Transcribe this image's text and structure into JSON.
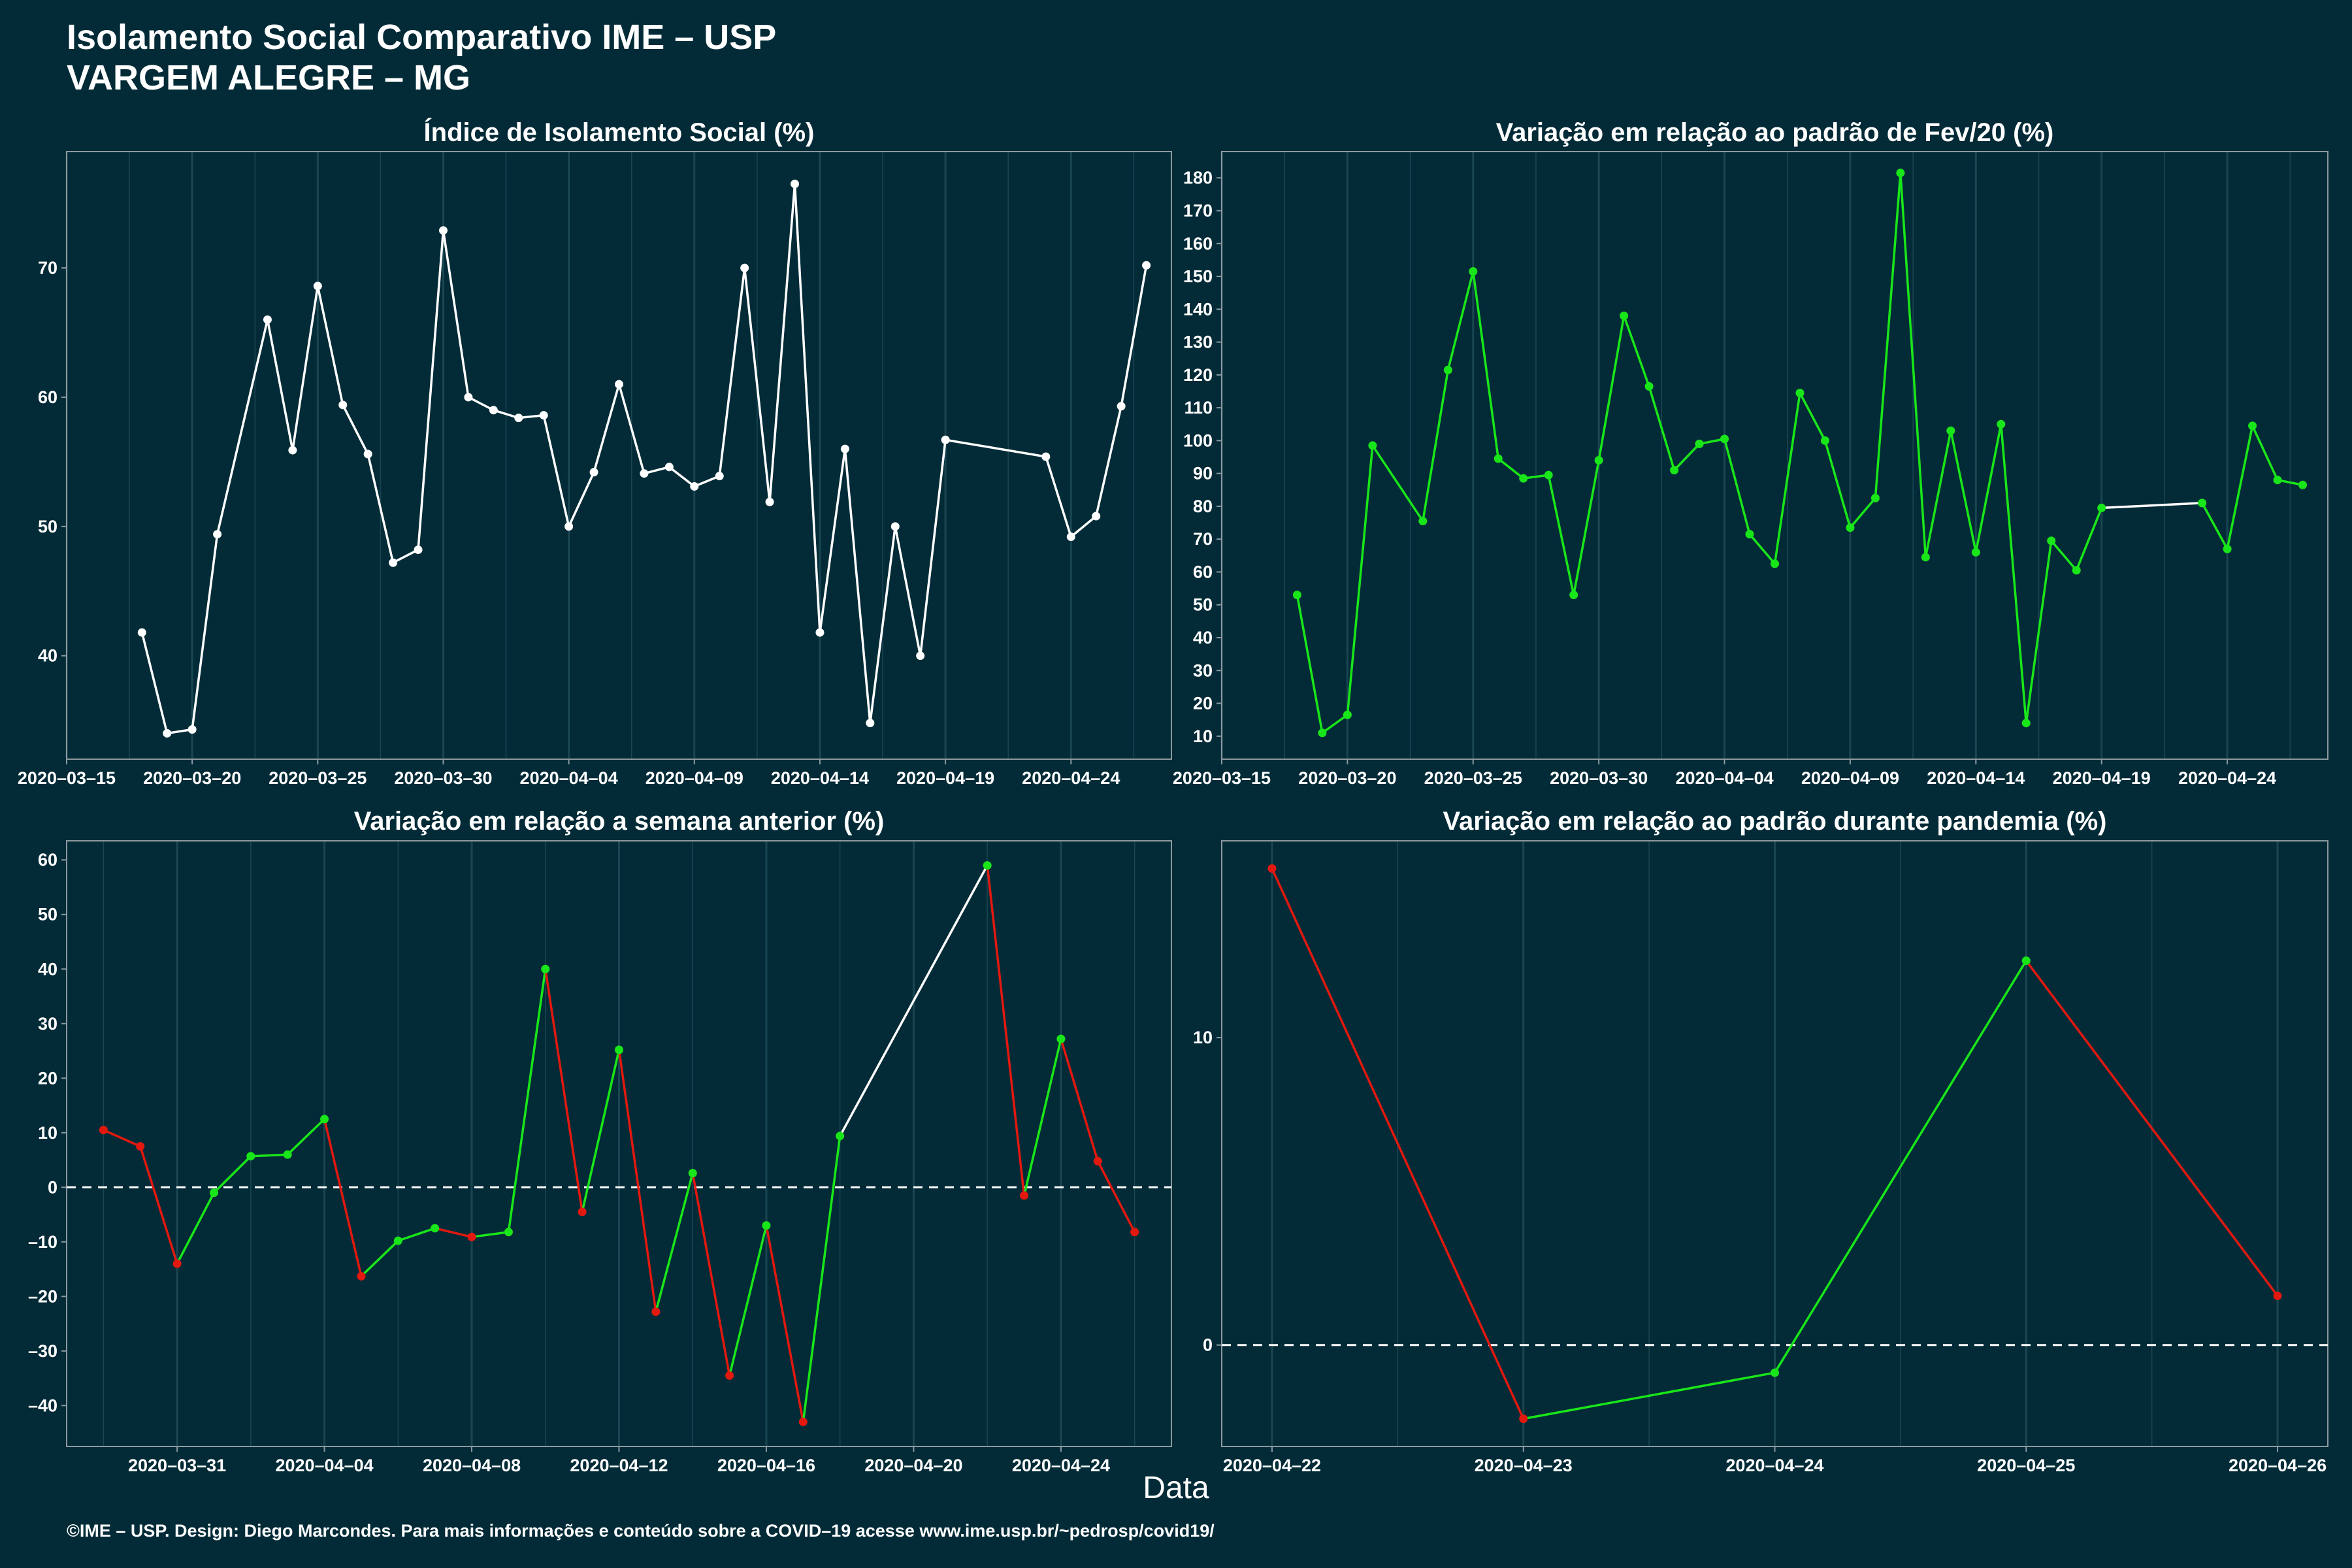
{
  "header": {
    "title_line1": "Isolamento Social Comparativo IME – USP",
    "title_line2": "VARGEM ALEGRE – MG"
  },
  "x_axis_label": "Data",
  "footer": "©IME – USP. Design: Diego Marcondes. Para mais informações e conteúdo sobre a COVID–19 acesse www.ime.usp.br/~pedrosp/covid19/",
  "colors": {
    "background": "#022b37",
    "panel_border": "#8c9aa0",
    "grid": "#1a4652",
    "white": "#ffffff",
    "green": "#19e619",
    "red": "#e3180f",
    "positive": "#19e619",
    "negative": "#e3180f"
  },
  "chart_data": [
    {
      "id": "isolation-index",
      "type": "line",
      "title": "Índice de Isolamento Social (%)",
      "xlabel": "Data",
      "ylabel": "",
      "color": "#ffffff",
      "x": [
        "2020-03-18",
        "2020-03-19",
        "2020-03-20",
        "2020-03-21",
        "2020-03-23",
        "2020-03-24",
        "2020-03-25",
        "2020-03-26",
        "2020-03-27",
        "2020-03-28",
        "2020-03-29",
        "2020-03-30",
        "2020-03-31",
        "2020-04-01",
        "2020-04-02",
        "2020-04-03",
        "2020-04-04",
        "2020-04-05",
        "2020-04-06",
        "2020-04-07",
        "2020-04-08",
        "2020-04-09",
        "2020-04-10",
        "2020-04-11",
        "2020-04-12",
        "2020-04-13",
        "2020-04-14",
        "2020-04-15",
        "2020-04-16",
        "2020-04-17",
        "2020-04-18",
        "2020-04-19",
        "2020-04-23",
        "2020-04-24",
        "2020-04-25",
        "2020-04-26",
        "2020-04-27"
      ],
      "values": [
        41.8,
        34.0,
        34.3,
        49.4,
        66.0,
        55.9,
        68.6,
        59.4,
        55.6,
        47.2,
        48.2,
        72.9,
        60.0,
        59.0,
        58.4,
        58.6,
        50.0,
        54.2,
        61.0,
        54.1,
        54.6,
        53.1,
        53.9,
        70.0,
        51.9,
        76.5,
        41.8,
        56.0,
        34.8,
        50.0,
        40.0,
        56.7,
        55.4,
        49.2,
        50.8,
        59.3,
        70.2
      ],
      "xlim": [
        "2020-03-15",
        "2020-04-28"
      ],
      "ylim": [
        32.0,
        79.0
      ],
      "x_ticks": [
        "2020-03-15",
        "2020-03-20",
        "2020-03-25",
        "2020-03-30",
        "2020-04-04",
        "2020-04-09",
        "2020-04-14",
        "2020-04-19",
        "2020-04-24"
      ],
      "y_ticks": [
        40,
        50,
        60,
        70
      ]
    },
    {
      "id": "variation-feb",
      "type": "line",
      "title": "Variação em relação ao padrão de Fev/20 (%)",
      "xlabel": "Data",
      "ylabel": "",
      "color": "#19e619",
      "x": [
        "2020-03-18",
        "2020-03-19",
        "2020-03-20",
        "2020-03-21",
        "2020-03-23",
        "2020-03-24",
        "2020-03-25",
        "2020-03-26",
        "2020-03-27",
        "2020-03-28",
        "2020-03-29",
        "2020-03-30",
        "2020-03-31",
        "2020-04-01",
        "2020-04-02",
        "2020-04-03",
        "2020-04-04",
        "2020-04-05",
        "2020-04-06",
        "2020-04-07",
        "2020-04-08",
        "2020-04-09",
        "2020-04-10",
        "2020-04-11",
        "2020-04-12",
        "2020-04-13",
        "2020-04-14",
        "2020-04-15",
        "2020-04-16",
        "2020-04-17",
        "2020-04-18",
        "2020-04-19",
        "2020-04-23",
        "2020-04-24",
        "2020-04-25",
        "2020-04-26",
        "2020-04-27"
      ],
      "values": [
        53,
        11,
        16.5,
        98.5,
        75.5,
        121.5,
        151.5,
        94.5,
        88.5,
        89.5,
        53,
        94,
        138,
        116.5,
        91,
        99,
        100.5,
        71.5,
        62.5,
        114.5,
        100,
        73.5,
        82.5,
        181.5,
        64.5,
        103,
        66,
        105,
        14,
        69.5,
        60.5,
        79.5,
        81,
        67,
        104.5,
        88,
        86.5
      ],
      "white_segment": [
        "2020-04-19",
        "2020-04-23"
      ],
      "xlim": [
        "2020-03-15",
        "2020-04-28"
      ],
      "ylim": [
        3.0,
        188.0
      ],
      "x_ticks": [
        "2020-03-15",
        "2020-03-20",
        "2020-03-25",
        "2020-03-30",
        "2020-04-04",
        "2020-04-09",
        "2020-04-14",
        "2020-04-19",
        "2020-04-24"
      ],
      "y_ticks": [
        10,
        20,
        30,
        40,
        50,
        60,
        70,
        80,
        90,
        100,
        110,
        120,
        130,
        140,
        150,
        160,
        170,
        180
      ]
    },
    {
      "id": "variation-week",
      "type": "line",
      "title": "Variação em relação a semana anterior (%)",
      "xlabel": "Data",
      "ylabel": "",
      "x": [
        "2020-03-29",
        "2020-03-30",
        "2020-03-31",
        "2020-04-01",
        "2020-04-02",
        "2020-04-03",
        "2020-04-04",
        "2020-04-05",
        "2020-04-06",
        "2020-04-07",
        "2020-04-08",
        "2020-04-09",
        "2020-04-10",
        "2020-04-11",
        "2020-04-12",
        "2020-04-13",
        "2020-04-14",
        "2020-04-15",
        "2020-04-16",
        "2020-04-17",
        "2020-04-18",
        "2020-04-22",
        "2020-04-23",
        "2020-04-24",
        "2020-04-25",
        "2020-04-26"
      ],
      "values": [
        10.5,
        7.5,
        -14,
        -1,
        5.7,
        6,
        12.5,
        -16.3,
        -9.8,
        -7.5,
        -9.1,
        -8.2,
        40,
        -4.5,
        25.2,
        -22.8,
        2.6,
        -34.5,
        -7,
        -43,
        9.4,
        59,
        -1.5,
        27.2,
        4.8,
        -8.2
      ],
      "white_segment": [
        "2020-04-18",
        "2020-04-22"
      ],
      "reference_line": 0,
      "xlim": [
        "2020-03-28",
        "2020-04-27"
      ],
      "ylim": [
        -47.5,
        63.5
      ],
      "x_ticks": [
        "2020-03-31",
        "2020-04-04",
        "2020-04-08",
        "2020-04-12",
        "2020-04-16",
        "2020-04-20",
        "2020-04-24"
      ],
      "y_ticks": [
        -40,
        -30,
        -20,
        -10,
        0,
        10,
        20,
        30,
        40,
        50,
        60
      ]
    },
    {
      "id": "variation-pandemic",
      "type": "line",
      "title": "Variação em relação ao padrão durante pandemia (%)",
      "xlabel": "Data",
      "ylabel": "",
      "x": [
        "2020-04-22",
        "2020-04-23",
        "2020-04-24",
        "2020-04-25",
        "2020-04-26"
      ],
      "values": [
        15.5,
        -2.4,
        -0.9,
        12.5,
        1.6
      ],
      "reference_line": 0,
      "xlim": [
        "2020-04-21.8",
        "2020-04-26.2"
      ],
      "ylim": [
        -3.3,
        16.4
      ],
      "x_ticks": [
        "2020-04-22",
        "2020-04-23",
        "2020-04-24",
        "2020-04-25",
        "2020-04-26"
      ],
      "y_ticks": [
        0,
        10
      ]
    }
  ]
}
